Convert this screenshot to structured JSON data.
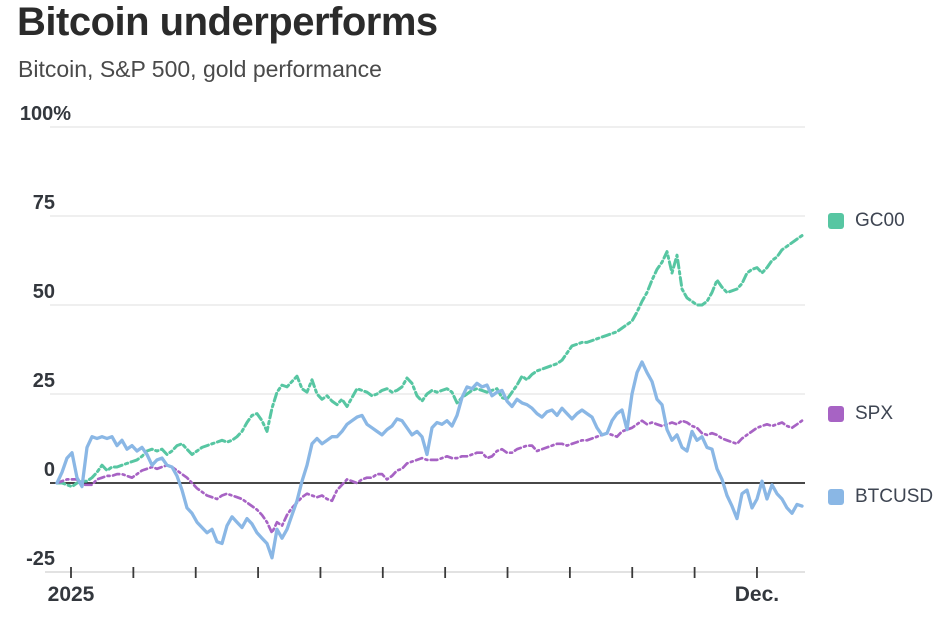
{
  "header": {
    "title": "Bitcoin underperforms",
    "subtitle": "Bitcoin, S&P 500, gold performance"
  },
  "chart_data": {
    "type": "line",
    "title": "Bitcoin underperforms",
    "subtitle": "Bitcoin, S&P 500, gold performance",
    "xlabel": "",
    "ylabel": "",
    "ylim": [
      -25,
      100
    ],
    "grid": true,
    "zero_line": true,
    "legend_position": "right",
    "x_description": "Jan 2025 through early Dec 2025, cumulative % performance",
    "yticks": [
      {
        "label": "100%",
        "value": 100
      },
      {
        "label": "75",
        "value": 75
      },
      {
        "label": "50",
        "value": 50
      },
      {
        "label": "25",
        "value": 25
      },
      {
        "label": "0",
        "value": 0
      },
      {
        "label": "-25",
        "value": -25
      }
    ],
    "xticks": {
      "count": 12,
      "labeled": [
        {
          "index": 0,
          "label": "2025"
        },
        {
          "index": 11,
          "label": "Dec."
        }
      ]
    },
    "series": [
      {
        "name": "GC00",
        "color": "#57c6a2",
        "style": "dash-dot",
        "values": [
          0,
          0,
          -0.5,
          -1,
          0,
          0.5,
          0.5,
          1.5,
          3,
          5,
          3.5,
          4.5,
          4.5,
          5,
          5.5,
          6,
          6.5,
          7.5,
          9,
          9.5,
          9,
          9.5,
          8,
          9,
          10.5,
          11,
          9.5,
          8,
          9,
          10,
          10.5,
          11,
          11.5,
          12,
          11.5,
          12,
          13,
          14.5,
          17,
          19,
          19.5,
          17.5,
          14.5,
          21,
          25.5,
          27.5,
          27,
          28.5,
          30,
          26.5,
          25.5,
          29,
          25,
          23.5,
          24.5,
          23,
          22,
          23.5,
          21.5,
          24,
          26.5,
          26,
          25.5,
          24.5,
          25,
          26,
          26.5,
          25.5,
          26,
          27,
          29.5,
          28,
          24.5,
          23,
          25,
          26,
          25.5,
          26,
          26.5,
          25.5,
          22.5,
          24,
          25,
          26,
          26.5,
          26,
          25.5,
          26,
          26.5,
          24,
          23.5,
          25.5,
          27.5,
          30,
          29,
          30.5,
          31.5,
          32,
          32.5,
          33,
          33.5,
          34.5,
          36.5,
          38.5,
          39,
          39.5,
          39.5,
          40,
          40.5,
          41,
          41.5,
          42,
          42.5,
          43.5,
          44.5,
          45.5,
          48,
          51,
          53.5,
          57,
          60,
          62,
          65,
          59,
          64,
          54.5,
          52,
          51,
          50,
          50,
          51,
          53.5,
          57,
          55,
          53.5,
          54,
          54.5,
          56,
          59,
          60,
          60.5,
          59,
          60.5,
          62.5,
          63.5,
          65.5,
          66.5,
          67.5,
          68.5,
          69.5
        ]
      },
      {
        "name": "SPX",
        "color": "#a763c4",
        "style": "dash-dot",
        "values": [
          0,
          0.5,
          1,
          1,
          1,
          -0.5,
          -0.5,
          -0.5,
          1,
          1.5,
          2,
          2,
          2.5,
          2.5,
          2,
          1.5,
          2.5,
          3.5,
          4,
          4.5,
          4,
          4.5,
          5,
          4.5,
          3.5,
          2.5,
          1.5,
          0,
          -1.5,
          -2.5,
          -3.5,
          -4,
          -4.5,
          -3.5,
          -3,
          -3.5,
          -4,
          -4.5,
          -5.5,
          -6.5,
          -7.5,
          -9,
          -11,
          -14,
          -11,
          -12,
          -9,
          -7,
          -5.5,
          -4,
          -3,
          -3.5,
          -4,
          -3.5,
          -4.5,
          -5,
          -2,
          -0.5,
          1,
          0.5,
          0,
          1,
          1.5,
          1.5,
          2.5,
          2.5,
          1,
          2,
          3.5,
          4,
          5.5,
          6,
          6.5,
          7,
          6.5,
          6.5,
          6.5,
          7,
          7.5,
          7,
          7,
          7.5,
          7.5,
          8,
          8.5,
          8.5,
          7,
          7.5,
          9,
          9.5,
          8.5,
          8.5,
          9.5,
          10,
          10.5,
          10.5,
          9,
          9.5,
          10,
          10.5,
          11,
          11,
          10.5,
          11,
          11.5,
          12,
          12,
          12.5,
          13,
          13.5,
          14,
          13.5,
          13,
          14.5,
          15,
          15.5,
          16.5,
          17.5,
          16.5,
          17,
          16.5,
          16,
          16.5,
          17,
          16.5,
          17.5,
          17,
          16,
          15.5,
          14,
          13.5,
          14,
          13.5,
          12.5,
          12,
          11.5,
          11,
          12.5,
          13.5,
          14.5,
          15.5,
          16,
          16.5,
          16,
          16.5,
          17,
          16,
          15.5,
          16.5,
          17.5
        ]
      },
      {
        "name": "BTCUSD",
        "color": "#8ab7e5",
        "style": "solid",
        "values": [
          0,
          3,
          7,
          8.5,
          1.5,
          -1,
          10,
          13,
          12.5,
          13,
          12.5,
          13,
          10.5,
          12,
          9.5,
          10.5,
          9,
          10,
          8,
          5,
          6.5,
          7,
          5,
          4.5,
          2,
          -2,
          -7,
          -8.5,
          -11,
          -12.5,
          -14,
          -13,
          -16.5,
          -17,
          -12,
          -9.5,
          -11,
          -12.5,
          -10,
          -11.5,
          -14,
          -15.5,
          -17,
          -21,
          -13,
          -15.5,
          -13,
          -9,
          -5,
          0.5,
          5,
          11,
          12.5,
          11,
          12,
          13,
          13,
          14.5,
          16.5,
          17.5,
          18.5,
          19,
          16.5,
          15.5,
          14.5,
          13.5,
          15,
          16,
          18,
          17.5,
          15.5,
          13.5,
          14.5,
          13,
          8,
          15.5,
          17,
          16.5,
          17.5,
          16,
          19,
          24,
          27,
          26.5,
          28,
          27,
          27.5,
          24.5,
          25.5,
          26,
          23,
          21.5,
          23.5,
          22.5,
          22,
          21,
          19.5,
          18.5,
          20,
          20.5,
          19,
          21,
          19.5,
          18,
          19.5,
          20.5,
          19.5,
          18.5,
          15.5,
          13.5,
          14,
          17.5,
          19.5,
          20.5,
          15,
          25,
          31,
          34,
          31,
          28.5,
          23.5,
          22,
          15,
          12,
          13.5,
          10,
          9,
          14.5,
          12,
          13,
          10,
          9.5,
          4,
          1,
          -3.5,
          -6.5,
          -10,
          -3,
          -2,
          -7,
          -4.5,
          0.5,
          -4.5,
          -0.5,
          -3,
          -4.5,
          -7,
          -8.5,
          -6,
          -6.5
        ]
      }
    ]
  }
}
